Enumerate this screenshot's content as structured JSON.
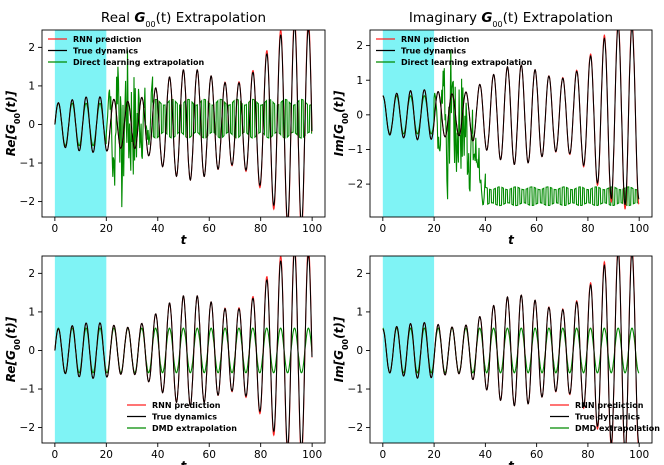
{
  "colors": {
    "shade": "#7ff3f5",
    "rnn": "#ff2020",
    "true": "#000000",
    "green": "#008a00"
  },
  "chart_data": [
    {
      "type": "line",
      "title": "Real G00(t) Extrapolation",
      "title_parts": {
        "pre": "Real ",
        "sym": "G",
        "sub": "00",
        "post": "(t)",
        "rest": " Extrapolation"
      },
      "xlabel": "t",
      "ylabel_parts": {
        "pre": "Re[",
        "sym": "G",
        "sub": "00",
        "post": "(t)]"
      },
      "xlim": [
        -5,
        105
      ],
      "ylim": [
        -2.4,
        2.45
      ],
      "xticks": [
        0,
        20,
        40,
        60,
        80,
        100
      ],
      "xticklabels": [
        "0",
        "20",
        "40",
        "60",
        "80",
        "100"
      ],
      "yticks": [
        -2,
        -1,
        0,
        1,
        2
      ],
      "yticklabels": [
        "−2",
        "−1",
        "0",
        "1",
        "2"
      ],
      "shaded_region": [
        0,
        20
      ],
      "legend_loc": "upper-left",
      "legend": [
        "RNN prediction",
        "True dynamics",
        "Direct learning extrapolation"
      ],
      "series": [
        {
          "name": "RNN prediction",
          "model": {
            "form": "osc",
            "phase": 0.0,
            "start_amp": 0.55,
            "growth": 0.014,
            "peak_boost": 1.08
          }
        },
        {
          "name": "True dynamics",
          "model": {
            "form": "osc",
            "phase": 0.0,
            "start_amp": 0.55,
            "growth": 0.014,
            "peak_boost": 1.0
          }
        },
        {
          "name": "Direct learning extrapolation",
          "model": {
            "form": "direct",
            "phase": 0.0,
            "chaos_start": 20,
            "chaos_end": 38,
            "settle_center": 0.15,
            "settle_amp": 0.5
          }
        }
      ]
    },
    {
      "type": "line",
      "title": "Imaginary G00(t) Extrapolation",
      "title_parts": {
        "pre": "Imaginary ",
        "sym": "G",
        "sub": "00",
        "post": "(t)",
        "rest": " Extrapolation"
      },
      "xlabel": "t",
      "ylabel_parts": {
        "pre": "Im[",
        "sym": "G",
        "sub": "00",
        "post": "(t)]"
      },
      "xlim": [
        -5,
        105
      ],
      "ylim": [
        -2.95,
        2.45
      ],
      "xticks": [
        0,
        20,
        40,
        60,
        80,
        100
      ],
      "xticklabels": [
        "0",
        "20",
        "40",
        "60",
        "80",
        "100"
      ],
      "yticks": [
        -2,
        -1,
        0,
        1,
        2
      ],
      "yticklabels": [
        "−2",
        "−1",
        "0",
        "1",
        "2"
      ],
      "shaded_region": [
        0,
        20
      ],
      "legend_loc": "upper-left",
      "legend": [
        "RNN prediction",
        "True dynamics",
        "Direct learning extrapolation"
      ],
      "series": [
        {
          "name": "RNN prediction",
          "model": {
            "form": "osc",
            "phase": 1.5708,
            "start_amp": 0.55,
            "growth": 0.014,
            "peak_boost": 1.06
          }
        },
        {
          "name": "True dynamics",
          "model": {
            "form": "osc",
            "phase": 1.5708,
            "start_amp": 0.55,
            "growth": 0.014,
            "peak_boost": 1.0
          }
        },
        {
          "name": "Direct learning extrapolation",
          "model": {
            "form": "direct",
            "phase": 1.5708,
            "chaos_start": 20,
            "chaos_end": 40,
            "settle_center": -2.35,
            "settle_amp": 0.27
          }
        }
      ]
    },
    {
      "type": "line",
      "title": "",
      "xlabel": "t",
      "ylabel_parts": {
        "pre": "Re[",
        "sym": "G",
        "sub": "00",
        "post": "(t)]"
      },
      "xlim": [
        -5,
        105
      ],
      "ylim": [
        -2.4,
        2.45
      ],
      "xticks": [
        0,
        20,
        40,
        60,
        80,
        100
      ],
      "xticklabels": [
        "0",
        "20",
        "40",
        "60",
        "80",
        "100"
      ],
      "yticks": [
        -2,
        -1,
        0,
        1,
        2
      ],
      "yticklabels": [
        "−2",
        "−1",
        "0",
        "1",
        "2"
      ],
      "shaded_region": [
        0,
        20
      ],
      "legend_loc": "lower-center",
      "legend": [
        "RNN prediction",
        "True dynamics",
        "DMD extrapolation"
      ],
      "series": [
        {
          "name": "RNN prediction",
          "model": {
            "form": "osc",
            "phase": 0.0,
            "start_amp": 0.55,
            "growth": 0.014,
            "peak_boost": 1.08
          }
        },
        {
          "name": "True dynamics",
          "model": {
            "form": "osc",
            "phase": 0.0,
            "start_amp": 0.55,
            "growth": 0.014,
            "peak_boost": 1.0
          }
        },
        {
          "name": "DMD extrapolation",
          "model": {
            "form": "dmd",
            "phase": 0.0,
            "amp": 0.58
          }
        }
      ]
    },
    {
      "type": "line",
      "title": "",
      "xlabel": "t",
      "ylabel_parts": {
        "pre": "Im[",
        "sym": "G",
        "sub": "00",
        "post": "(t)]"
      },
      "xlim": [
        -5,
        105
      ],
      "ylim": [
        -2.4,
        2.45
      ],
      "xticks": [
        0,
        20,
        40,
        60,
        80,
        100
      ],
      "xticklabels": [
        "0",
        "20",
        "40",
        "60",
        "80",
        "100"
      ],
      "yticks": [
        -2,
        -1,
        0,
        1,
        2
      ],
      "yticklabels": [
        "−2",
        "−1",
        "0",
        "1",
        "2"
      ],
      "shaded_region": [
        0,
        20
      ],
      "legend_loc": "lower-right",
      "legend": [
        "RNN prediction",
        "True dynamics",
        "DMD extrapolation"
      ],
      "series": [
        {
          "name": "RNN prediction",
          "model": {
            "form": "osc",
            "phase": 1.5708,
            "start_amp": 0.55,
            "growth": 0.014,
            "peak_boost": 1.06
          }
        },
        {
          "name": "True dynamics",
          "model": {
            "form": "osc",
            "phase": 1.5708,
            "start_amp": 0.55,
            "growth": 0.014,
            "peak_boost": 1.0
          }
        },
        {
          "name": "DMD extrapolation",
          "model": {
            "form": "dmd",
            "phase": 1.5708,
            "amp": 0.58
          }
        }
      ]
    }
  ]
}
